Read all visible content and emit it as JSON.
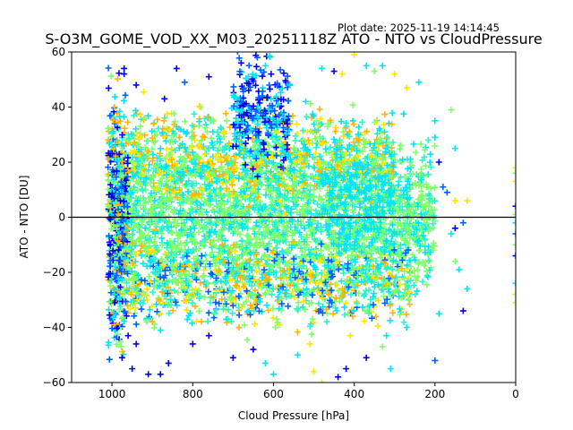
{
  "chart_data": {
    "type": "scatter",
    "title": "S-O3M_GOME_VOD_XX_M03_20251118Z ATO - NTO vs CloudPressure",
    "plot_date": "Plot date: 2025-11-19 14:14:45",
    "xlabel": "Cloud Pressure [hPa]",
    "ylabel": "ATO - NTO [DU]",
    "xlim": [
      1100,
      0
    ],
    "ylim": [
      -60,
      60
    ],
    "xticks": [
      1000,
      800,
      600,
      400,
      200,
      0
    ],
    "yticks": [
      -60,
      -40,
      -20,
      0,
      20,
      40,
      60
    ],
    "reference_line": {
      "y": 0,
      "color": "#000000"
    },
    "grid": false,
    "marker": "+",
    "color_palette": {
      "darkblue": "#0000e6",
      "blue": "#0060ff",
      "cyan": "#00e4f4",
      "aqua": "#2ff0d0",
      "green": "#7fff6a",
      "yellow": "#ffe400",
      "orange": "#ffb400"
    },
    "clouds": [
      {
        "name": "core",
        "x_range": [
          990,
          200
        ],
        "y_center": 0,
        "y_spread": 14,
        "count": 2600,
        "colors": [
          "green",
          "green",
          "green",
          "cyan",
          "aqua"
        ]
      },
      {
        "name": "upper-band",
        "x_range": [
          960,
          300
        ],
        "y_center": 22,
        "y_spread": 8,
        "count": 900,
        "colors": [
          "yellow",
          "cyan",
          "aqua",
          "orange",
          "green"
        ]
      },
      {
        "name": "lower-band",
        "x_range": [
          960,
          260
        ],
        "y_center": -24,
        "y_spread": 7,
        "count": 800,
        "colors": [
          "cyan",
          "aqua",
          "yellow",
          "orange",
          "blue",
          "green"
        ]
      },
      {
        "name": "blue-plume",
        "x_range": [
          700,
          560
        ],
        "y_center": 38,
        "y_spread": 10,
        "count": 260,
        "colors": [
          "blue",
          "darkblue",
          "cyan"
        ]
      },
      {
        "name": "left-edge",
        "x_range": [
          1010,
          960
        ],
        "y_center": 0,
        "y_spread": 22,
        "count": 500,
        "colors": [
          "darkblue",
          "blue",
          "cyan",
          "orange",
          "green"
        ]
      },
      {
        "name": "cyan-patch",
        "x_range": [
          480,
          300
        ],
        "y_center": 6,
        "y_spread": 10,
        "count": 220,
        "colors": [
          "cyan"
        ]
      }
    ],
    "outliers": [
      {
        "x": 970,
        "y": 54,
        "c": "darkblue"
      },
      {
        "x": 970,
        "y": 52,
        "c": "darkblue"
      },
      {
        "x": 940,
        "y": 48,
        "c": "darkblue"
      },
      {
        "x": 840,
        "y": 54,
        "c": "darkblue"
      },
      {
        "x": 870,
        "y": 43,
        "c": "darkblue"
      },
      {
        "x": 920,
        "y": 36,
        "c": "green"
      },
      {
        "x": 930,
        "y": 33,
        "c": "green"
      },
      {
        "x": 820,
        "y": 49,
        "c": "blue"
      },
      {
        "x": 760,
        "y": 51,
        "c": "darkblue"
      },
      {
        "x": 680,
        "y": 56,
        "c": "darkblue"
      },
      {
        "x": 640,
        "y": 58,
        "c": "blue"
      },
      {
        "x": 620,
        "y": 55,
        "c": "cyan"
      },
      {
        "x": 560,
        "y": 48,
        "c": "cyan"
      },
      {
        "x": 520,
        "y": 42,
        "c": "cyan"
      },
      {
        "x": 480,
        "y": 54,
        "c": "cyan"
      },
      {
        "x": 450,
        "y": 53,
        "c": "darkblue"
      },
      {
        "x": 430,
        "y": 52,
        "c": "yellow"
      },
      {
        "x": 400,
        "y": 59,
        "c": "yellow"
      },
      {
        "x": 370,
        "y": 55,
        "c": "cyan"
      },
      {
        "x": 350,
        "y": 53,
        "c": "green"
      },
      {
        "x": 330,
        "y": 55,
        "c": "cyan"
      },
      {
        "x": 300,
        "y": 52,
        "c": "yellow"
      },
      {
        "x": 270,
        "y": 47,
        "c": "yellow"
      },
      {
        "x": 240,
        "y": 49,
        "c": "cyan"
      },
      {
        "x": 200,
        "y": 35,
        "c": "cyan"
      },
      {
        "x": 200,
        "y": 29,
        "c": "cyan"
      },
      {
        "x": 160,
        "y": 39,
        "c": "green"
      },
      {
        "x": 150,
        "y": 25,
        "c": "cyan"
      },
      {
        "x": 190,
        "y": 20,
        "c": "darkblue"
      },
      {
        "x": 180,
        "y": 11,
        "c": "blue"
      },
      {
        "x": 170,
        "y": 9,
        "c": "blue"
      },
      {
        "x": 150,
        "y": 6,
        "c": "yellow"
      },
      {
        "x": 120,
        "y": 6,
        "c": "yellow"
      },
      {
        "x": 130,
        "y": -2,
        "c": "blue"
      },
      {
        "x": 150,
        "y": -4,
        "c": "darkblue"
      },
      {
        "x": 160,
        "y": -6,
        "c": "cyan"
      },
      {
        "x": 150,
        "y": -16,
        "c": "green"
      },
      {
        "x": 140,
        "y": -19,
        "c": "cyan"
      },
      {
        "x": 120,
        "y": -26,
        "c": "cyan"
      },
      {
        "x": 130,
        "y": -34,
        "c": "darkblue"
      },
      {
        "x": 190,
        "y": -35,
        "c": "cyan"
      },
      {
        "x": 200,
        "y": -52,
        "c": "blue"
      },
      {
        "x": 270,
        "y": -40,
        "c": "cyan"
      },
      {
        "x": 320,
        "y": -43,
        "c": "cyan"
      },
      {
        "x": 330,
        "y": -47,
        "c": "green"
      },
      {
        "x": 370,
        "y": -51,
        "c": "darkblue"
      },
      {
        "x": 310,
        "y": -55,
        "c": "cyan"
      },
      {
        "x": 410,
        "y": -43,
        "c": "yellow"
      },
      {
        "x": 420,
        "y": -55,
        "c": "darkblue"
      },
      {
        "x": 440,
        "y": -58,
        "c": "darkblue"
      },
      {
        "x": 480,
        "y": -60,
        "c": "yellow"
      },
      {
        "x": 500,
        "y": -56,
        "c": "yellow"
      },
      {
        "x": 510,
        "y": -46,
        "c": "yellow"
      },
      {
        "x": 540,
        "y": -50,
        "c": "cyan"
      },
      {
        "x": 600,
        "y": -57,
        "c": "cyan"
      },
      {
        "x": 620,
        "y": -53,
        "c": "cyan"
      },
      {
        "x": 650,
        "y": -48,
        "c": "darkblue"
      },
      {
        "x": 700,
        "y": -51,
        "c": "darkblue"
      },
      {
        "x": 760,
        "y": -43,
        "c": "darkblue"
      },
      {
        "x": 800,
        "y": -46,
        "c": "darkblue"
      },
      {
        "x": 860,
        "y": -53,
        "c": "darkblue"
      },
      {
        "x": 880,
        "y": -57,
        "c": "darkblue"
      },
      {
        "x": 910,
        "y": -57,
        "c": "darkblue"
      },
      {
        "x": 950,
        "y": -55,
        "c": "darkblue"
      },
      {
        "x": 975,
        "y": -51,
        "c": "darkblue"
      },
      {
        "x": 960,
        "y": -43,
        "c": "darkblue"
      },
      {
        "x": 940,
        "y": -46,
        "c": "darkblue"
      },
      {
        "x": 880,
        "y": -41,
        "c": "cyan"
      },
      {
        "x": 900,
        "y": -38,
        "c": "orange"
      },
      {
        "x": 880,
        "y": -35,
        "c": "yellow"
      },
      {
        "x": 0,
        "y": 18,
        "c": "yellow"
      },
      {
        "x": 0,
        "y": 16,
        "c": "green"
      },
      {
        "x": 0,
        "y": 13,
        "c": "yellow"
      },
      {
        "x": 0,
        "y": 4,
        "c": "darkblue"
      },
      {
        "x": 0,
        "y": 1,
        "c": "green"
      },
      {
        "x": 0,
        "y": -2,
        "c": "cyan"
      },
      {
        "x": 0,
        "y": -6,
        "c": "blue"
      },
      {
        "x": 0,
        "y": -10,
        "c": "green"
      },
      {
        "x": 0,
        "y": -14,
        "c": "darkblue"
      },
      {
        "x": 0,
        "y": -24,
        "c": "cyan"
      },
      {
        "x": 0,
        "y": -28,
        "c": "yellow"
      },
      {
        "x": 0,
        "y": -31,
        "c": "yellow"
      }
    ]
  }
}
